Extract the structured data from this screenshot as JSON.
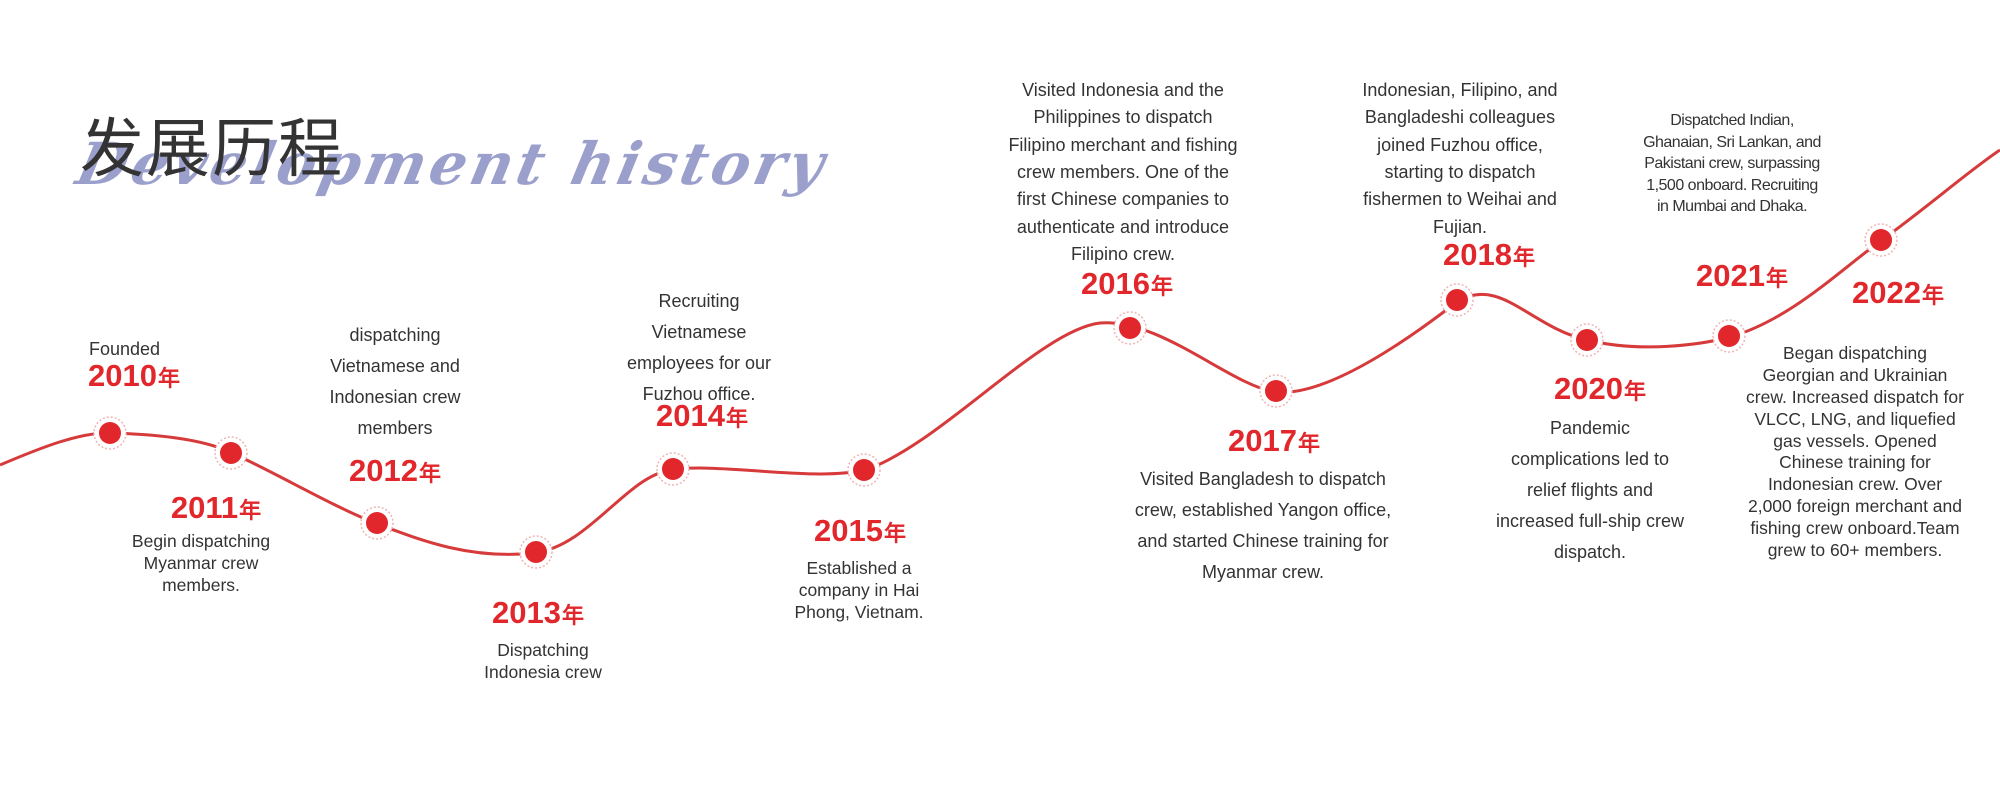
{
  "header": {
    "title_cn": "发展历程",
    "title_en": "Development history"
  },
  "colors": {
    "accent": "#e1272b",
    "line": "#d63a3a",
    "text": "#333333",
    "script": "#8a8fc4"
  },
  "timeline": [
    {
      "year": "2010",
      "suffix": "年",
      "text": "Founded"
    },
    {
      "year": "2011",
      "suffix": "年",
      "text": "Begin dispatching Myanmar crew members."
    },
    {
      "year": "2012",
      "suffix": "年",
      "text": "dispatching Vietnamese and Indonesian crew members"
    },
    {
      "year": "2013",
      "suffix": "年",
      "text": "Dispatching Indonesia crew"
    },
    {
      "year": "2014",
      "suffix": "年",
      "text": "Recruiting Vietnamese employees for our Fuzhou office."
    },
    {
      "year": "2015",
      "suffix": "年",
      "text": "Established a company in Hai Phong, Vietnam."
    },
    {
      "year": "2016",
      "suffix": "年",
      "text": "Visited Indonesia and the Philippines to dispatch Filipino merchant and fishing crew members. One of the first Chinese companies to authenticate and introduce Filipino crew."
    },
    {
      "year": "2017",
      "suffix": "年",
      "text": "Visited Bangladesh to dispatch crew, established Yangon office, and started Chinese training for Myanmar crew."
    },
    {
      "year": "2018",
      "suffix": "年",
      "text": "Indonesian, Filipino, and Bangladeshi colleagues joined Fuzhou office, starting to dispatch fishermen to Weihai and Fujian."
    },
    {
      "year": "2020",
      "suffix": "年",
      "text": "Pandemic complications led to relief flights and increased full-ship crew dispatch."
    },
    {
      "year": "2021",
      "suffix": "年",
      "text": "Dispatched Indian, Ghanaian, Sri Lankan, and Pakistani crew, surpassing 1,500 onboard. Recruiting in Mumbai and Dhaka."
    },
    {
      "year": "2022",
      "suffix": "年",
      "text": "Began dispatching Georgian and Ukrainian crew. Increased dispatch for VLCC, LNG, and liquefied gas vessels. Opened Chinese training for Indonesian crew. Over 2,000 foreign merchant and fishing crew onboard.Team grew to 60+ members."
    }
  ]
}
